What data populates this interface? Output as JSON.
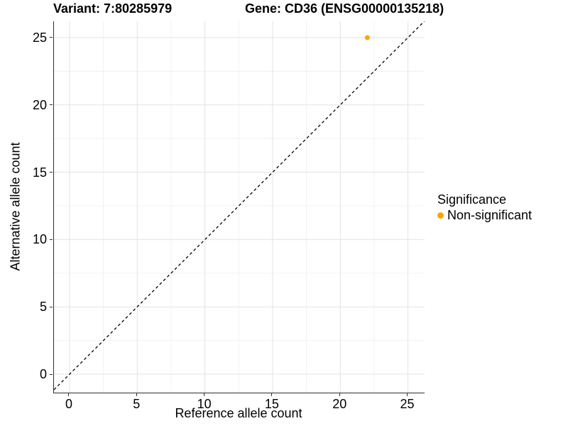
{
  "chart_data": {
    "type": "scatter",
    "title_left": "Variant: 7:80285979",
    "title_right": "Gene: CD36 (ENSG00000135218)",
    "xlabel": "Reference allele count",
    "ylabel": "Alternative allele count",
    "xlim": [
      -1.154,
      26.23
    ],
    "ylim": [
      -1.371,
      26.21
    ],
    "xticks": [
      0,
      5,
      10,
      15,
      20,
      25
    ],
    "yticks": [
      0,
      5,
      10,
      15,
      20,
      25
    ],
    "minor_xticks": [
      2.5,
      7.5,
      12.5,
      17.5,
      22.5
    ],
    "minor_yticks": [
      2.5,
      7.5,
      12.5,
      17.5,
      22.5
    ],
    "grid": "on",
    "points": [
      {
        "x": 22,
        "y": 25,
        "series": "Non-significant"
      }
    ],
    "identity_line": {
      "slope": 1,
      "intercept": 0,
      "style": "dashed",
      "color": "#000000"
    },
    "legend": {
      "position": "right",
      "title": "Significance",
      "items": [
        {
          "label": "Non-significant",
          "color": "#FFA500"
        }
      ]
    },
    "colors": {
      "point": "#FFA500",
      "grid_major": "#E3E3E3",
      "grid_minor": "#F1F1F1",
      "axis_line": "#2e2e2e",
      "text": "#000000"
    }
  }
}
